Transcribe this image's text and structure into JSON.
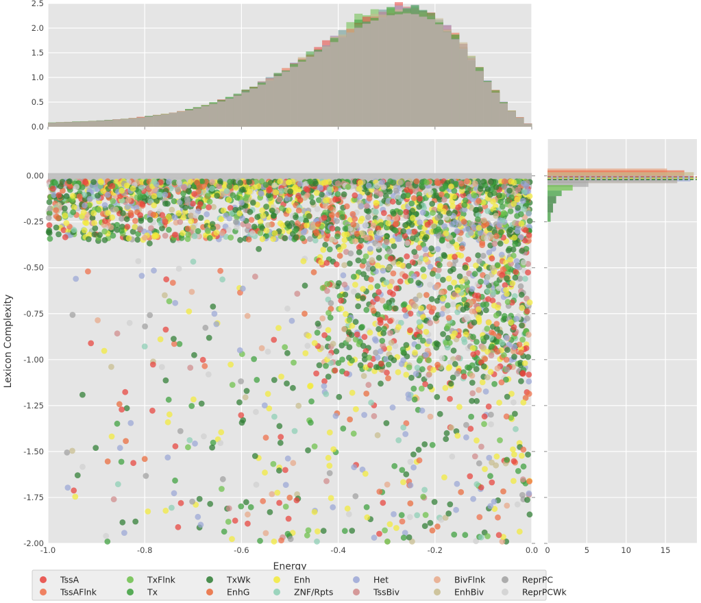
{
  "chart_data": [
    {
      "type": "scatter",
      "role": "main",
      "xlabel": "Energy",
      "ylabel": "Lexicon Complexity",
      "xlim": [
        -1.0,
        0.0
      ],
      "ylim": [
        -2.0,
        0.2
      ],
      "xticks": [
        "-1.0",
        "-0.8",
        "-0.6",
        "-0.4",
        "-0.2",
        "0.0"
      ],
      "yticks": [
        "-2.00",
        "-1.75",
        "-1.50",
        "-1.25",
        "-1.00",
        "-0.75",
        "-0.50",
        "-0.25",
        "0.00"
      ],
      "grid": true,
      "legend_position": "bottom",
      "series": [
        {
          "name": "TssA",
          "color": "#e8423c"
        },
        {
          "name": "TssAFlnk",
          "color": "#ee6d48"
        },
        {
          "name": "TxFlnk",
          "color": "#6cc04a"
        },
        {
          "name": "Tx",
          "color": "#3c9f3c"
        },
        {
          "name": "TxWk",
          "color": "#2e7d32"
        },
        {
          "name": "EnhG",
          "color": "#ea6a3a"
        },
        {
          "name": "Enh",
          "color": "#f2ea3a"
        },
        {
          "name": "ZNF/Rpts",
          "color": "#8ccfb4"
        },
        {
          "name": "Het",
          "color": "#9aa6d6"
        },
        {
          "name": "TssBiv",
          "color": "#d08a8a"
        },
        {
          "name": "BivFlnk",
          "color": "#e8a888"
        },
        {
          "name": "EnhBiv",
          "color": "#c8bc8e"
        },
        {
          "name": "ReprPC",
          "color": "#a0a0a0"
        },
        {
          "name": "ReprPCWk",
          "color": "#d0d0d0"
        }
      ]
    },
    {
      "type": "area",
      "role": "top-marginal-histogram",
      "xlim": [
        -1.0,
        0.0
      ],
      "ylim": [
        0,
        2.5
      ],
      "yticks": [
        "0.0",
        "0.5",
        "1.0",
        "1.5",
        "2.0",
        "2.5"
      ],
      "x": [
        -1.0,
        -0.95,
        -0.9,
        -0.85,
        -0.8,
        -0.75,
        -0.7,
        -0.65,
        -0.6,
        -0.55,
        -0.5,
        -0.45,
        -0.4,
        -0.35,
        -0.3,
        -0.25,
        -0.2,
        -0.15,
        -0.1,
        -0.05,
        0.0
      ],
      "values": [
        0.08,
        0.1,
        0.12,
        0.15,
        0.2,
        0.27,
        0.36,
        0.5,
        0.68,
        0.92,
        1.2,
        1.52,
        1.82,
        2.12,
        2.32,
        2.38,
        2.22,
        1.75,
        1.05,
        0.38,
        0.0
      ]
    },
    {
      "type": "area",
      "role": "right-marginal-histogram",
      "xlim": [
        0,
        19
      ],
      "xticks": [
        "0",
        "5",
        "10",
        "15"
      ],
      "orientation": "horizontal"
    }
  ]
}
